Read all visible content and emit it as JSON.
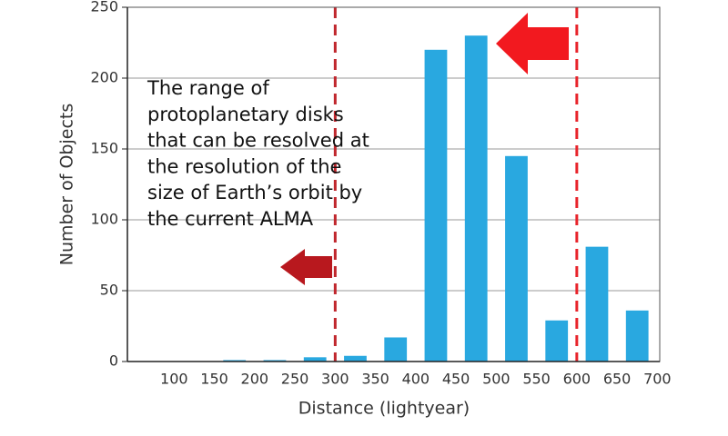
{
  "chart_data": {
    "type": "histogram",
    "x_label": "Distance (lightyear)",
    "y_label": "Number of Objects",
    "bins": [
      100,
      150,
      200,
      250,
      300,
      350,
      400,
      450,
      500,
      550,
      600,
      650,
      700
    ],
    "values": [
      0,
      1,
      1,
      3,
      4,
      17,
      220,
      230,
      145,
      29,
      81,
      36
    ],
    "color": "#29a8e0",
    "xlim": [
      42,
      703
    ],
    "ylim": [
      0,
      250
    ],
    "xticks": [
      100,
      150,
      200,
      250,
      300,
      350,
      400,
      450,
      500,
      550,
      600,
      650,
      700
    ],
    "yticks": [
      0,
      50,
      100,
      150,
      200,
      250
    ],
    "grid": true,
    "vlines": [
      {
        "value": 300,
        "color": "#c0272d"
      },
      {
        "value": 600,
        "color": "#e8242b"
      }
    ],
    "annotation": [
      "The range of",
      "protoplanetary disks",
      "that can be resolved at",
      "the resolution of the",
      "size of Earth’s orbit by",
      "the current ALMA"
    ]
  }
}
